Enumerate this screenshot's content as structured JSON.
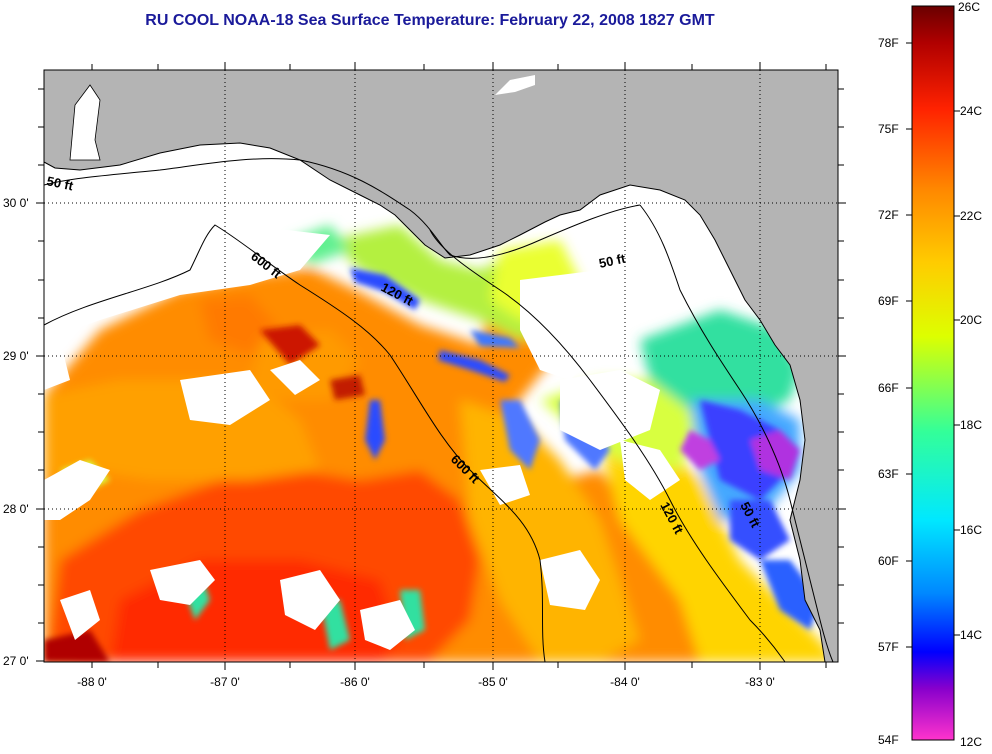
{
  "title": "RU COOL  NOAA-18  Sea Surface Temperature:  February 22, 2008 1827 GMT",
  "map": {
    "lon_ticks": [
      "-88 0'",
      "-87 0'",
      "-86 0'",
      "-85 0'",
      "-84 0'",
      "-83 0'"
    ],
    "lat_ticks": [
      "30 0'",
      "29 0'",
      "28 0'",
      "27 0'"
    ],
    "lon_range": [
      -88.3,
      -82.4
    ],
    "lat_range": [
      26.95,
      30.95
    ],
    "land_color": "#b4b4b4",
    "no_data_color": "#ffffff",
    "contour_labels": [
      "50 ft",
      "600 ft",
      "120 ft",
      "50 ft",
      "600 ft",
      "120 ft",
      "50 ft"
    ]
  },
  "colorbar": {
    "fahrenheit_labels": [
      "78F",
      "75F",
      "72F",
      "69F",
      "66F",
      "63F",
      "60F",
      "57F",
      "54F"
    ],
    "celsius_labels": [
      "26C",
      "24C",
      "22C",
      "20C",
      "18C",
      "16C",
      "14C",
      "12C"
    ],
    "range_c": [
      12,
      26
    ],
    "gradient_colors": [
      "#ff33cc",
      "#8800cc",
      "#0000ff",
      "#0088ff",
      "#00e8ff",
      "#33ff99",
      "#ddff00",
      "#ffcc00",
      "#ff8800",
      "#ff2200",
      "#b00000",
      "#6a0000"
    ]
  }
}
